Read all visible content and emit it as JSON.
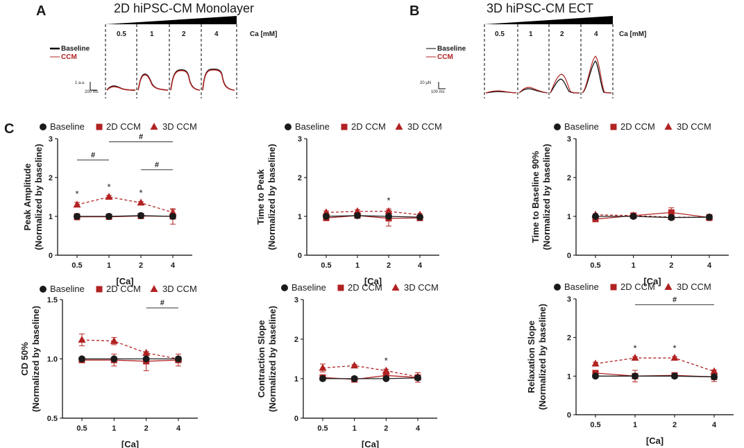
{
  "panels": {
    "a": "A",
    "b": "B",
    "c": "C"
  },
  "traces": {
    "monolayer": {
      "title": "2D hiPSC-CM Monolayer",
      "conc_labels": [
        "0.5",
        "1",
        "2",
        "4"
      ],
      "unit": "Ca [mM]",
      "legend": [
        "Baseline",
        "CCM"
      ],
      "scale_y": "1 a.u.",
      "scale_x": "200 ms"
    },
    "ect": {
      "title": "3D hiPSC-CM ECT",
      "conc_labels": [
        "0.5",
        "1",
        "2",
        "4"
      ],
      "unit": "Ca [mM]",
      "legend": [
        "Baseline",
        "CCM"
      ],
      "scale_y": "20 µN",
      "scale_x": "100 ms"
    }
  },
  "legend": {
    "baseline": "Baseline",
    "ccm2d": "2D CCM",
    "ccm3d": "3D CCM"
  },
  "colors": {
    "baseline": "#1a1a1a",
    "ccm": "#b22222"
  },
  "chart_data": [
    {
      "type": "line",
      "id": "c1",
      "ylabel": "Peak Amplitude\n(Normalized by baseline)",
      "xlabel": "[Ca]",
      "categories": [
        "0.5",
        "1",
        "2",
        "4"
      ],
      "ylim": [
        0,
        3
      ],
      "yticks": [
        "0",
        "1",
        "2",
        "3"
      ],
      "series": [
        {
          "name": "Baseline",
          "values": [
            1.0,
            1.0,
            1.02,
            1.0
          ],
          "err": [
            0.03,
            0.03,
            0.03,
            0.03
          ]
        },
        {
          "name": "2D CCM",
          "values": [
            0.99,
            0.99,
            1.01,
            1.0
          ],
          "err": [
            0.08,
            0.05,
            0.05,
            0.2
          ]
        },
        {
          "name": "3D CCM",
          "values": [
            1.3,
            1.5,
            1.35,
            1.1
          ],
          "err": [
            0.06,
            0.04,
            0.03,
            0.07
          ]
        }
      ],
      "stars": [
        "*",
        "*",
        "*",
        ""
      ],
      "sig": [
        {
          "label": "#",
          "from": 0,
          "to": 1,
          "y": 2.45
        },
        {
          "label": "#",
          "from": 1,
          "to": 3,
          "y": 2.92
        },
        {
          "label": "#",
          "from": 2,
          "to": 3,
          "y": 2.2
        }
      ]
    },
    {
      "type": "line",
      "id": "c2",
      "ylabel": "Time to Peak\n(Normalized by baseline)",
      "xlabel": "[Ca]",
      "categories": [
        "0.5",
        "1",
        "2",
        "4"
      ],
      "ylim": [
        0,
        3
      ],
      "yticks": [
        "0",
        "1",
        "2",
        "3"
      ],
      "series": [
        {
          "name": "Baseline",
          "values": [
            1.0,
            1.02,
            1.0,
            0.98
          ],
          "err": [
            0.03,
            0.03,
            0.03,
            0.03
          ]
        },
        {
          "name": "2D CCM",
          "values": [
            0.96,
            1.02,
            0.95,
            0.96
          ],
          "err": [
            0.07,
            0.03,
            0.2,
            0.07
          ]
        },
        {
          "name": "3D CCM",
          "values": [
            1.1,
            1.13,
            1.13,
            1.04
          ],
          "err": [
            0.04,
            0.04,
            0.06,
            0.03
          ]
        }
      ],
      "stars": [
        "",
        "",
        "*",
        ""
      ],
      "sig": []
    },
    {
      "type": "line",
      "id": "c3",
      "ylabel": "Time to Baseline 90%\n(Normalized by baseline)",
      "xlabel": "[Ca]",
      "categories": [
        "0.5",
        "1",
        "2",
        "4"
      ],
      "ylim": [
        0,
        3
      ],
      "yticks": [
        "0",
        "1",
        "2",
        "3"
      ],
      "series": [
        {
          "name": "Baseline",
          "values": [
            1.0,
            1.0,
            0.97,
            0.98
          ],
          "err": [
            0.03,
            0.03,
            0.03,
            0.03
          ]
        },
        {
          "name": "2D CCM",
          "values": [
            0.93,
            1.02,
            1.1,
            0.97
          ],
          "err": [
            0.05,
            0.04,
            0.12,
            0.08
          ]
        },
        {
          "name": "3D CCM",
          "values": [
            1.04,
            1.02,
            0.98,
            0.98
          ],
          "err": [
            0.03,
            0.03,
            0.05,
            0.03
          ]
        }
      ],
      "stars": [
        "",
        "",
        "",
        ""
      ],
      "sig": []
    },
    {
      "type": "line",
      "id": "c4",
      "ylabel": "CD 50%\n(Normalized by baseline)",
      "xlabel": "[Ca]",
      "categories": [
        "0.5",
        "1",
        "2",
        "4"
      ],
      "ylim": [
        0.5,
        1.5
      ],
      "yticks": [
        "0.5",
        "1.0",
        "1.5"
      ],
      "series": [
        {
          "name": "Baseline",
          "values": [
            1.0,
            1.0,
            1.0,
            1.0
          ],
          "err": [
            0.01,
            0.01,
            0.01,
            0.01
          ]
        },
        {
          "name": "2D CCM",
          "values": [
            0.99,
            0.99,
            0.98,
            0.99
          ],
          "err": [
            0.02,
            0.05,
            0.08,
            0.05
          ]
        },
        {
          "name": "3D CCM",
          "values": [
            1.16,
            1.15,
            1.05,
            1.0
          ],
          "err": [
            0.05,
            0.03,
            0.01,
            0.02
          ]
        }
      ],
      "stars": [
        "",
        "",
        "",
        ""
      ],
      "sig": [
        {
          "label": "#",
          "from": 2,
          "to": 3,
          "y": 1.43
        }
      ]
    },
    {
      "type": "line",
      "id": "c5",
      "ylabel": "Contraction Slope\n(Normalized by baseline)",
      "xlabel": "[Ca]",
      "categories": [
        "0.5",
        "1",
        "2",
        "4"
      ],
      "ylim": [
        0,
        3
      ],
      "yticks": [
        "0",
        "1",
        "2",
        "3"
      ],
      "series": [
        {
          "name": "Baseline",
          "values": [
            1.0,
            1.0,
            1.0,
            1.02
          ],
          "err": [
            0.03,
            0.03,
            0.03,
            0.05
          ]
        },
        {
          "name": "2D CCM",
          "values": [
            1.03,
            0.98,
            1.08,
            1.03
          ],
          "err": [
            0.05,
            0.04,
            0.06,
            0.12
          ]
        },
        {
          "name": "3D CCM",
          "values": [
            1.27,
            1.33,
            1.2,
            1.05
          ],
          "err": [
            0.1,
            0.03,
            0.04,
            0.04
          ]
        }
      ],
      "stars": [
        "",
        "",
        "*",
        ""
      ],
      "sig": []
    },
    {
      "type": "line",
      "id": "c6",
      "ylabel": "Relaxation Slope\n(Normalized by baseline)",
      "xlabel": "[Ca]",
      "categories": [
        "0.5",
        "1",
        "2",
        "4"
      ],
      "ylim": [
        0,
        3
      ],
      "yticks": [
        "0",
        "1",
        "2",
        "3"
      ],
      "series": [
        {
          "name": "Baseline",
          "values": [
            1.0,
            1.0,
            1.0,
            0.98
          ],
          "err": [
            0.03,
            0.03,
            0.03,
            0.03
          ]
        },
        {
          "name": "2D CCM",
          "values": [
            1.08,
            1.0,
            1.02,
            0.98
          ],
          "err": [
            0.05,
            0.15,
            0.03,
            0.12
          ]
        },
        {
          "name": "3D CCM",
          "values": [
            1.32,
            1.47,
            1.47,
            1.12
          ],
          "err": [
            0.04,
            0.03,
            0.03,
            0.04
          ]
        }
      ],
      "stars": [
        "",
        "*",
        "*",
        ""
      ],
      "sig": [
        {
          "label": "#",
          "from": 1,
          "to": 3,
          "y": 2.85
        }
      ]
    }
  ]
}
